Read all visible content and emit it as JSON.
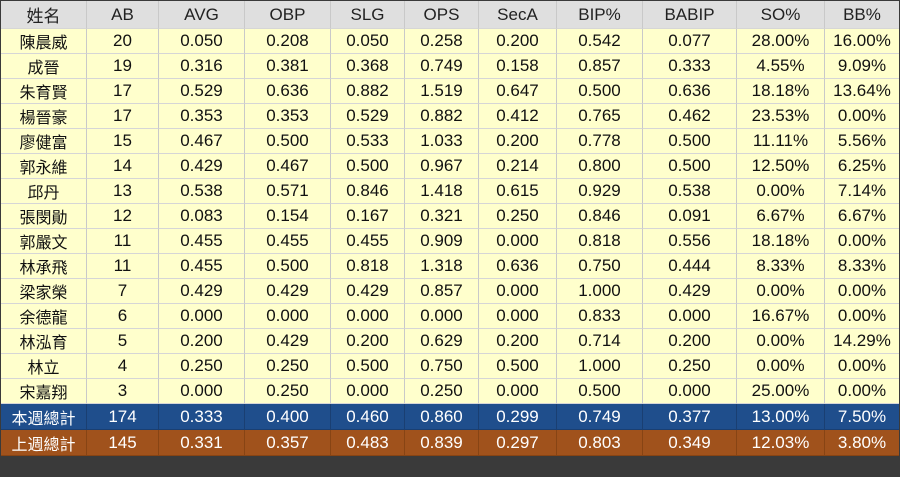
{
  "columns": [
    "姓名",
    "AB",
    "AVG",
    "OBP",
    "SLG",
    "OPS",
    "SecA",
    "BIP%",
    "BABIP",
    "SO%",
    "BB%"
  ],
  "rows": [
    [
      "陳晨威",
      "20",
      "0.050",
      "0.208",
      "0.050",
      "0.258",
      "0.200",
      "0.542",
      "0.077",
      "28.00%",
      "16.00%"
    ],
    [
      "成晉",
      "19",
      "0.316",
      "0.381",
      "0.368",
      "0.749",
      "0.158",
      "0.857",
      "0.333",
      "4.55%",
      "9.09%"
    ],
    [
      "朱育賢",
      "17",
      "0.529",
      "0.636",
      "0.882",
      "1.519",
      "0.647",
      "0.500",
      "0.636",
      "18.18%",
      "13.64%"
    ],
    [
      "楊晉豪",
      "17",
      "0.353",
      "0.353",
      "0.529",
      "0.882",
      "0.412",
      "0.765",
      "0.462",
      "23.53%",
      "0.00%"
    ],
    [
      "廖健富",
      "15",
      "0.467",
      "0.500",
      "0.533",
      "1.033",
      "0.200",
      "0.778",
      "0.500",
      "11.11%",
      "5.56%"
    ],
    [
      "郭永維",
      "14",
      "0.429",
      "0.467",
      "0.500",
      "0.967",
      "0.214",
      "0.800",
      "0.500",
      "12.50%",
      "6.25%"
    ],
    [
      "邱丹",
      "13",
      "0.538",
      "0.571",
      "0.846",
      "1.418",
      "0.615",
      "0.929",
      "0.538",
      "0.00%",
      "7.14%"
    ],
    [
      "張閔勛",
      "12",
      "0.083",
      "0.154",
      "0.167",
      "0.321",
      "0.250",
      "0.846",
      "0.091",
      "6.67%",
      "6.67%"
    ],
    [
      "郭嚴文",
      "11",
      "0.455",
      "0.455",
      "0.455",
      "0.909",
      "0.000",
      "0.818",
      "0.556",
      "18.18%",
      "0.00%"
    ],
    [
      "林承飛",
      "11",
      "0.455",
      "0.500",
      "0.818",
      "1.318",
      "0.636",
      "0.750",
      "0.444",
      "8.33%",
      "8.33%"
    ],
    [
      "梁家榮",
      "7",
      "0.429",
      "0.429",
      "0.429",
      "0.857",
      "0.000",
      "1.000",
      "0.429",
      "0.00%",
      "0.00%"
    ],
    [
      "余德龍",
      "6",
      "0.000",
      "0.000",
      "0.000",
      "0.000",
      "0.000",
      "0.833",
      "0.000",
      "16.67%",
      "0.00%"
    ],
    [
      "林泓育",
      "5",
      "0.200",
      "0.429",
      "0.200",
      "0.629",
      "0.200",
      "0.714",
      "0.200",
      "0.00%",
      "14.29%"
    ],
    [
      "林立",
      "4",
      "0.250",
      "0.250",
      "0.500",
      "0.750",
      "0.500",
      "1.000",
      "0.250",
      "0.00%",
      "0.00%"
    ],
    [
      "宋嘉翔",
      "3",
      "0.000",
      "0.250",
      "0.000",
      "0.250",
      "0.000",
      "0.500",
      "0.000",
      "25.00%",
      "0.00%"
    ]
  ],
  "totals": {
    "this_week": [
      "本週總計",
      "174",
      "0.333",
      "0.400",
      "0.460",
      "0.860",
      "0.299",
      "0.749",
      "0.377",
      "13.00%",
      "7.50%"
    ],
    "last_week": [
      "上週總計",
      "145",
      "0.331",
      "0.357",
      "0.483",
      "0.839",
      "0.297",
      "0.803",
      "0.349",
      "12.03%",
      "3.80%"
    ]
  },
  "colors": {
    "row_background": "#ffffcc",
    "header_background": "#dfdfdf",
    "this_week_background": "#1f4e8c",
    "last_week_background": "#a0521c"
  }
}
